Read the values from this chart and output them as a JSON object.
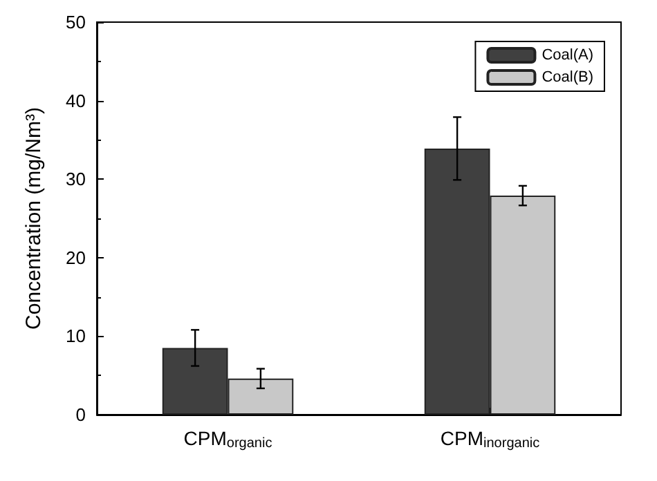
{
  "chart_data": {
    "type": "bar",
    "ylabel": "Concentration (mg/Nm³)",
    "categories": [
      "CPM$_{organic}$",
      "CPM$_{inorganic}$"
    ],
    "series": [
      {
        "name": "Coal(A)",
        "color": "#404040",
        "values": [
          8.5,
          33.9
        ],
        "errors": [
          2.3,
          4.0
        ]
      },
      {
        "name": "Coal(B)",
        "color": "#c8c8c8",
        "values": [
          4.6,
          27.9
        ],
        "errors": [
          1.25,
          1.25
        ]
      }
    ],
    "ylim": [
      0,
      50
    ],
    "yticks": [
      0,
      10,
      20,
      30,
      40,
      50
    ],
    "grid": false,
    "legend": "top right"
  }
}
